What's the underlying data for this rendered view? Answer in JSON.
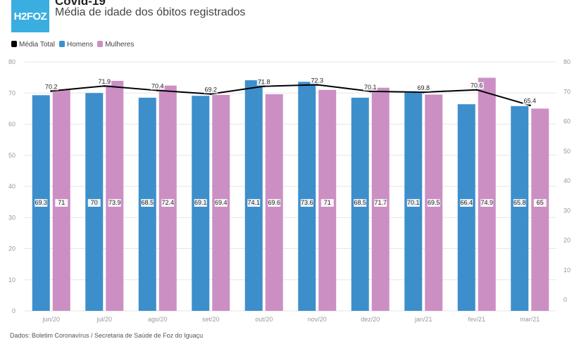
{
  "header": {
    "logo": "H2FOZ",
    "title": "Covid-19",
    "subtitle": "Média de idade dos óbitos registrados"
  },
  "footer": "Dados: Boletim Coronavírus / Secretaria de Saúde de Foz do Iguaçu",
  "chart_data": {
    "type": "bar",
    "title": "Covid-19",
    "subtitle": "Média de idade dos óbitos registrados",
    "categories": [
      "jun/20",
      "jul/20",
      "ago/20",
      "set/20",
      "out/20",
      "nov/20",
      "dez/20",
      "jan/21",
      "fev/21",
      "mar/21"
    ],
    "series": [
      {
        "name": "Média Total",
        "type": "line",
        "axis": "right",
        "color": "#000000",
        "values": [
          70.2,
          71.9,
          70.4,
          69.2,
          71.8,
          72.3,
          70.1,
          69.8,
          70.6,
          65.4
        ]
      },
      {
        "name": "Homens",
        "type": "bar",
        "axis": "left",
        "color": "#3d8fcc",
        "values": [
          69.3,
          70,
          68.5,
          69.1,
          74.1,
          73.6,
          68.5,
          70.1,
          66.4,
          65.8
        ]
      },
      {
        "name": "Mulheres",
        "type": "bar",
        "axis": "left",
        "color": "#cc8fc4",
        "values": [
          71,
          73.9,
          72.4,
          69.4,
          69.6,
          71,
          71.7,
          69.5,
          74.9,
          65
        ]
      }
    ],
    "left_axis": {
      "ylim": [
        0,
        80
      ],
      "ticks": [
        0,
        10,
        20,
        30,
        40,
        50,
        60,
        70,
        80
      ]
    },
    "right_axis": {
      "ylim": [
        0,
        80
      ],
      "ticks": [
        0,
        10,
        20,
        30,
        40,
        50,
        60,
        70,
        80
      ]
    },
    "grid": true,
    "legend": "top-left"
  }
}
